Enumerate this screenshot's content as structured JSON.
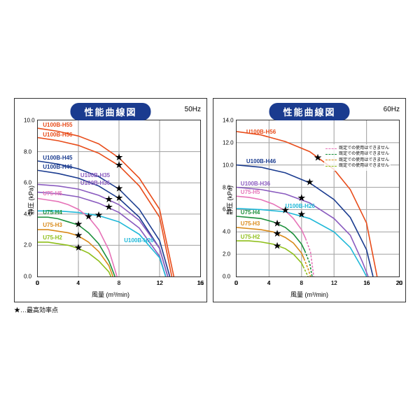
{
  "footnote": "★…最高効率点",
  "panels": [
    {
      "title": "性能曲線図",
      "hz": "50Hz",
      "xlabel": "風量 (m³/min)",
      "ylabel": "静圧 (kPa)",
      "xlim": [
        0,
        16
      ],
      "xtick_step": 4,
      "ylim": [
        0,
        10
      ],
      "ytick_step": 2,
      "grid_color": "#999",
      "series": [
        {
          "name": "U100B-H55",
          "color": "#e84c1a",
          "label_xy": [
            0.5,
            9.6
          ],
          "pts": [
            [
              0,
              9.5
            ],
            [
              2,
              9.3
            ],
            [
              4,
              9.0
            ],
            [
              6,
              8.5
            ],
            [
              8,
              7.6
            ],
            [
              10,
              6.3
            ],
            [
              12,
              4.3
            ],
            [
              13.4,
              0
            ]
          ],
          "star": [
            8,
            7.6
          ]
        },
        {
          "name": "U100B-H56",
          "color": "#e84c1a",
          "label_xy": [
            0.5,
            9.0
          ],
          "pts": [
            [
              0,
              8.9
            ],
            [
              2,
              8.7
            ],
            [
              4,
              8.4
            ],
            [
              6,
              7.9
            ],
            [
              8,
              7.1
            ],
            [
              10,
              5.8
            ],
            [
              12,
              3.8
            ],
            [
              13.2,
              0
            ]
          ],
          "star": [
            8,
            7.1
          ]
        },
        {
          "name": "U100B-H45",
          "color": "#1a3b8f",
          "label_xy": [
            0.5,
            7.5
          ],
          "pts": [
            [
              0,
              7.4
            ],
            [
              2,
              7.2
            ],
            [
              4,
              6.9
            ],
            [
              6,
              6.4
            ],
            [
              8,
              5.6
            ],
            [
              10,
              4.3
            ],
            [
              12,
              2.3
            ],
            [
              13.0,
              0
            ]
          ],
          "star": [
            8,
            5.6
          ]
        },
        {
          "name": "U100B-H46",
          "color": "#1a3b8f",
          "label_xy": [
            0.5,
            6.9
          ],
          "pts": [
            [
              0,
              6.8
            ],
            [
              2,
              6.6
            ],
            [
              4,
              6.3
            ],
            [
              6,
              5.8
            ],
            [
              8,
              5.0
            ],
            [
              10,
              3.8
            ],
            [
              12,
              1.8
            ],
            [
              12.8,
              0
            ]
          ],
          "star": [
            8,
            5.0
          ]
        },
        {
          "name": "U100B-H35",
          "color": "#8a5bbf",
          "label_xy": [
            4.2,
            6.4
          ],
          "pts": [
            [
              0,
              5.9
            ],
            [
              2,
              5.8
            ],
            [
              4,
              5.6
            ],
            [
              6,
              5.2
            ],
            [
              8,
              4.6
            ],
            [
              10,
              3.6
            ],
            [
              12,
              1.8
            ],
            [
              12.8,
              0
            ]
          ],
          "star": [
            7,
            4.9
          ]
        },
        {
          "name": "U100B-H36",
          "color": "#8a5bbf",
          "label_xy": [
            4.2,
            5.9
          ],
          "pts": [
            [
              0,
              5.4
            ],
            [
              2,
              5.3
            ],
            [
              4,
              5.1
            ],
            [
              6,
              4.7
            ],
            [
              8,
              4.1
            ],
            [
              10,
              3.1
            ],
            [
              12,
              1.3
            ],
            [
              12.6,
              0
            ]
          ],
          "star": [
            7,
            4.4
          ]
        },
        {
          "name": "U100B-H26",
          "color": "#1fb8d8",
          "label_xy": [
            8.5,
            2.2
          ],
          "pts": [
            [
              0,
              4.2
            ],
            [
              2,
              4.2
            ],
            [
              4,
              4.1
            ],
            [
              6,
              3.9
            ],
            [
              8,
              3.5
            ],
            [
              10,
              2.7
            ],
            [
              12,
              1.2
            ],
            [
              12.6,
              0
            ]
          ],
          "star": [
            6,
            3.9
          ]
        },
        {
          "name": "U75-H5",
          "color": "#e673b8",
          "label_xy": [
            0.5,
            5.2
          ],
          "pts": [
            [
              0,
              5.0
            ],
            [
              1,
              4.9
            ],
            [
              2,
              4.8
            ],
            [
              3,
              4.6
            ],
            [
              4,
              4.3
            ],
            [
              5,
              3.8
            ],
            [
              6,
              3.0
            ],
            [
              7,
              1.7
            ],
            [
              7.8,
              0
            ]
          ],
          "star": [
            5,
            3.8
          ]
        },
        {
          "name": "U75-H4",
          "color": "#1a8f3a",
          "label_xy": [
            0.5,
            4.0
          ],
          "pts": [
            [
              0,
              3.8
            ],
            [
              1,
              3.8
            ],
            [
              2,
              3.7
            ],
            [
              3,
              3.5
            ],
            [
              4,
              3.3
            ],
            [
              5,
              2.8
            ],
            [
              6,
              2.1
            ],
            [
              7,
              1.0
            ],
            [
              7.6,
              0
            ]
          ],
          "star": [
            4,
            3.3
          ]
        },
        {
          "name": "U75-H3",
          "color": "#d98a1a",
          "label_xy": [
            0.5,
            3.2
          ],
          "pts": [
            [
              0,
              3.0
            ],
            [
              1,
              3.0
            ],
            [
              2,
              2.9
            ],
            [
              3,
              2.8
            ],
            [
              4,
              2.6
            ],
            [
              5,
              2.2
            ],
            [
              6,
              1.6
            ],
            [
              7,
              0.7
            ],
            [
              7.4,
              0
            ]
          ],
          "star": [
            4,
            2.6
          ]
        },
        {
          "name": "U75-H2",
          "color": "#8fbf1a",
          "label_xy": [
            0.5,
            2.4
          ],
          "pts": [
            [
              0,
              2.2
            ],
            [
              1,
              2.2
            ],
            [
              2,
              2.1
            ],
            [
              3,
              2.0
            ],
            [
              4,
              1.8
            ],
            [
              5,
              1.5
            ],
            [
              6,
              1.0
            ],
            [
              7,
              0.3
            ],
            [
              7.2,
              0
            ]
          ],
          "star": [
            4,
            1.8
          ]
        }
      ]
    },
    {
      "title": "性能曲線図",
      "hz": "60Hz",
      "xlabel": "風量 (m³/min)",
      "ylabel": "静圧 (kPa)",
      "xlim": [
        0,
        20
      ],
      "xtick_step": 4,
      "ylim": [
        0,
        14
      ],
      "ytick_step": 2,
      "grid_color": "#999",
      "legend_note": [
        {
          "color": "#e673b8",
          "dash": "4,2",
          "text": "既定での使用はできません"
        },
        {
          "color": "#1a8f3a",
          "dash": "4,2",
          "text": "既定での使用はできません"
        },
        {
          "color": "#d98a1a",
          "dash": "4,2",
          "text": "既定での使用はできません"
        },
        {
          "color": "#8fbf1a",
          "dash": "4,2",
          "text": "既定での使用はできません"
        }
      ],
      "series": [
        {
          "name": "U100B-H56",
          "color": "#e84c1a",
          "label_xy": [
            1.2,
            12.8
          ],
          "pts": [
            [
              0,
              13.0
            ],
            [
              3,
              12.7
            ],
            [
              6,
              12.1
            ],
            [
              9,
              11.2
            ],
            [
              12,
              9.6
            ],
            [
              14,
              7.8
            ],
            [
              16,
              4.8
            ],
            [
              17.3,
              0
            ]
          ],
          "star": [
            10,
            10.6
          ]
        },
        {
          "name": "U100B-H46",
          "color": "#1a3b8f",
          "label_xy": [
            1.2,
            10.2
          ],
          "pts": [
            [
              0,
              10.0
            ],
            [
              3,
              9.8
            ],
            [
              6,
              9.3
            ],
            [
              9,
              8.4
            ],
            [
              12,
              6.9
            ],
            [
              14,
              5.3
            ],
            [
              16,
              2.4
            ],
            [
              16.8,
              0
            ]
          ],
          "star": [
            9,
            8.4
          ]
        },
        {
          "name": "U100B-H36",
          "color": "#8a5bbf",
          "label_xy": [
            0.5,
            8.2
          ],
          "pts": [
            [
              0,
              8.0
            ],
            [
              3,
              7.8
            ],
            [
              6,
              7.4
            ],
            [
              9,
              6.6
            ],
            [
              12,
              5.2
            ],
            [
              14,
              3.7
            ],
            [
              15.5,
              1.3
            ],
            [
              16.2,
              0
            ]
          ],
          "star": [
            8,
            7.0
          ]
        },
        {
          "name": "U100B-H26",
          "color": "#1fb8d8",
          "label_xy": [
            6.0,
            6.2
          ],
          "pts": [
            [
              0,
              6.1
            ],
            [
              3,
              6.0
            ],
            [
              6,
              5.8
            ],
            [
              9,
              5.2
            ],
            [
              12,
              4.0
            ],
            [
              14,
              2.6
            ],
            [
              15.5,
              0.7
            ],
            [
              16.0,
              0
            ]
          ],
          "star": [
            8,
            5.5
          ]
        },
        {
          "name": "U75-H5",
          "color": "#e673b8",
          "label_xy": [
            0.5,
            7.4
          ],
          "pts": [
            [
              0,
              7.2
            ],
            [
              1.5,
              7.1
            ],
            [
              3,
              6.9
            ],
            [
              4.5,
              6.5
            ],
            [
              6,
              5.9
            ],
            [
              7,
              5.2
            ],
            [
              8,
              4.2
            ],
            [
              8.5,
              3.4
            ]
          ],
          "star": [
            6,
            5.9
          ],
          "dash_tail": [
            [
              8.5,
              3.4
            ],
            [
              9.1,
              2.2
            ],
            [
              9.5,
              0
            ]
          ]
        },
        {
          "name": "U75-H4",
          "color": "#1a8f3a",
          "label_xy": [
            0.5,
            5.6
          ],
          "pts": [
            [
              0,
              5.4
            ],
            [
              1.5,
              5.3
            ],
            [
              3,
              5.2
            ],
            [
              4.5,
              4.9
            ],
            [
              6,
              4.4
            ],
            [
              7,
              3.8
            ],
            [
              8,
              2.9
            ],
            [
              8.4,
              2.3
            ]
          ],
          "star": [
            5,
            4.7
          ],
          "dash_tail": [
            [
              8.4,
              2.3
            ],
            [
              9.0,
              1.2
            ],
            [
              9.3,
              0
            ]
          ]
        },
        {
          "name": "U75-H3",
          "color": "#d98a1a",
          "label_xy": [
            0.5,
            4.6
          ],
          "pts": [
            [
              0,
              4.4
            ],
            [
              1.5,
              4.3
            ],
            [
              3,
              4.2
            ],
            [
              4.5,
              4.0
            ],
            [
              6,
              3.5
            ],
            [
              7,
              3.0
            ],
            [
              8,
              2.1
            ],
            [
              8.3,
              1.6
            ]
          ],
          "star": [
            5,
            3.8
          ],
          "dash_tail": [
            [
              8.3,
              1.6
            ],
            [
              8.8,
              0.7
            ],
            [
              9.1,
              0
            ]
          ]
        },
        {
          "name": "U75-H2",
          "color": "#8fbf1a",
          "label_xy": [
            0.5,
            3.4
          ],
          "pts": [
            [
              0,
              3.2
            ],
            [
              1.5,
              3.2
            ],
            [
              3,
              3.1
            ],
            [
              4.5,
              2.9
            ],
            [
              6,
              2.5
            ],
            [
              7,
              2.0
            ],
            [
              8,
              1.2
            ],
            [
              8.2,
              0.9
            ]
          ],
          "star": [
            5,
            2.7
          ],
          "dash_tail": [
            [
              8.2,
              0.9
            ],
            [
              8.6,
              0.3
            ],
            [
              8.8,
              0
            ]
          ]
        }
      ]
    }
  ]
}
